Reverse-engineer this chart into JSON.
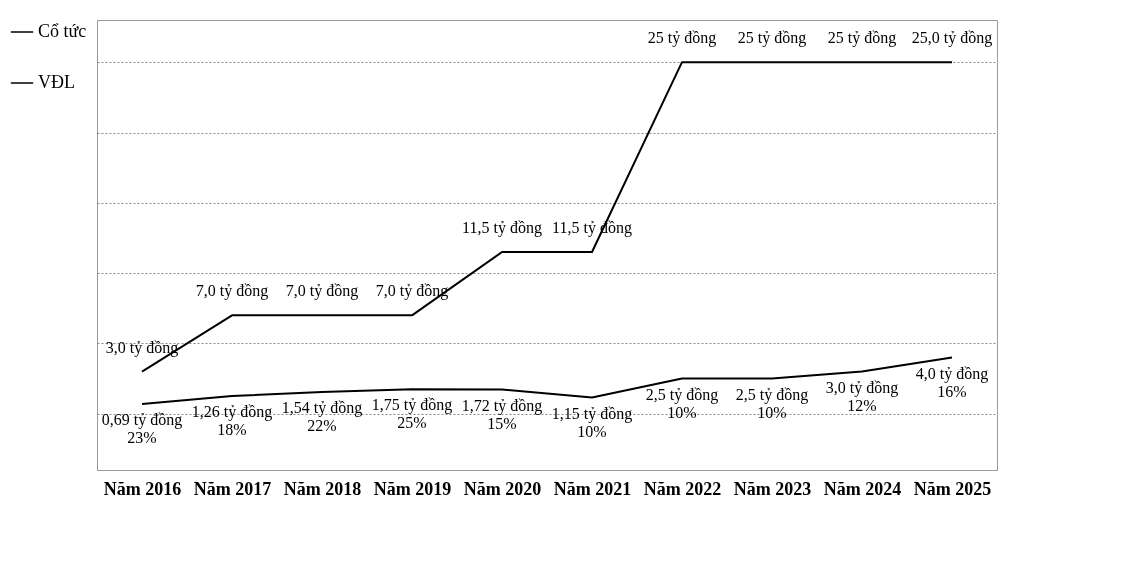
{
  "chart_data": {
    "type": "line",
    "categories": [
      "Năm 2016",
      "Năm 2017",
      "Năm 2018",
      "Năm 2019",
      "Năm 2020",
      "Năm 2021",
      "Năm 2022",
      "Năm 2023",
      "Năm 2024",
      "Năm 2025"
    ],
    "series": [
      {
        "name": "Cổ tức",
        "color": "#000000",
        "values": [
          0.69,
          1.26,
          1.54,
          1.75,
          1.72,
          1.15,
          2.5,
          2.5,
          3.0,
          4.0
        ],
        "value_labels": [
          "0,69 tỷ đồng\n23%",
          "1,26 tỷ đồng\n18%",
          "1,54 tỷ đồng\n22%",
          "1,75 tỷ đồng\n25%",
          "1,72 tỷ đồng\n15%",
          "1,15 tỷ đồng\n10%",
          "2,5 tỷ đồng\n10%",
          "2,5 tỷ đồng\n10%",
          "3,0 tỷ đồng\n12%",
          "4,0 tỷ đồng\n16%"
        ]
      },
      {
        "name": "VĐL",
        "color": "#000000",
        "values": [
          3.0,
          7.0,
          7.0,
          7.0,
          11.5,
          11.5,
          25,
          25,
          25,
          25.0
        ],
        "value_labels": [
          "3,0 tỷ đồng",
          "7,0 tỷ đồng",
          "7,0 tỷ đồng",
          "7,0 tỷ đồng",
          "11,5 tỷ đồng",
          "11,5 tỷ đồng",
          "25 tỷ đồng",
          "25 tỷ đồng",
          "25 tỷ đồng",
          "25,0 tỷ đồng"
        ]
      }
    ],
    "ylim": [
      -4,
      28
    ],
    "yticks": [
      {
        "value": 0,
        "label": null
      },
      {
        "value": 5,
        "label": null
      },
      {
        "value": 10,
        "label": null
      },
      {
        "value": 15,
        "label": null
      },
      {
        "value": 20,
        "label": null
      },
      {
        "value": 25,
        "label": null
      }
    ],
    "grid": "y",
    "legend": "left",
    "tick_labels": "x",
    "marker": "none",
    "line_style": "solid"
  }
}
